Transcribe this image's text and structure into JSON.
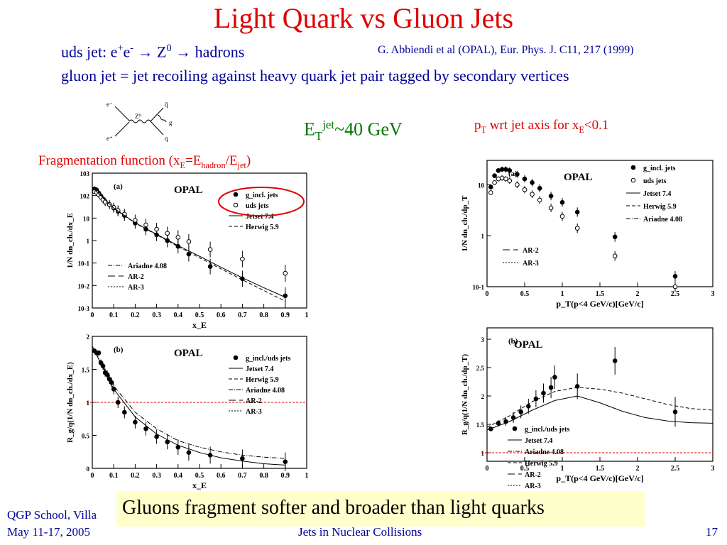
{
  "slide": {
    "title": "Light Quark vs Gluon Jets",
    "line1": {
      "prefix": "uds jet: e",
      "plus": "+",
      "e": "e",
      "minus": "-",
      "arrow1": " → Z",
      "zero": "0",
      "arrow2": " → hadrons"
    },
    "reference": "G. Abbiendi et al (OPAL), Eur. Phys. J. C11, 217 (1999)",
    "line2": "gluon jet = jet recoiling against heavy quark jet pair tagged by secondary vertices",
    "et": {
      "e": "E",
      "t": "T",
      "jet": "jet",
      "val": "~40 GeV"
    },
    "pt_label": {
      "p": "p",
      "t": "T",
      "mid": " wrt jet axis for x",
      "e": "E",
      "end": "<0.1"
    },
    "frag_label": {
      "a": "Fragmentation function (x",
      "e": "E",
      "b": "=E",
      "hadron": "hadron",
      "c": "/E",
      "jet": "jet",
      "d": ")"
    },
    "summary": "Gluons fragment softer and broader than light quarks",
    "footer": {
      "left1": "QGP School, Villa",
      "left2": "May 11-17, 2005",
      "center": "Jets in Nuclear Collisions",
      "page": "17"
    },
    "feynman": {
      "e_minus": "e⁻",
      "e_plus": "e⁺",
      "z": "Z⁰",
      "q": "q",
      "qbar": "q̄",
      "g": "g"
    }
  },
  "colors": {
    "title": "#e00000",
    "blue": "#000099",
    "green": "#007700",
    "banner": "#ffffcc",
    "circle": "#e00000",
    "ref_line": "#e00000"
  },
  "chart_data": [
    {
      "type": "scatter",
      "panel": "(a)",
      "title": "OPAL",
      "xlabel": "x_E",
      "ylabel": "1/N dn_ch./dx_E",
      "ylog": true,
      "xlim": [
        0,
        1
      ],
      "ylim": [
        0.001,
        1000
      ],
      "xticks": [
        "0",
        "0.1",
        "0.2",
        "0.3",
        "0.4",
        "0.5",
        "0.6",
        "0.7",
        "0.8",
        "0.9",
        "1"
      ],
      "yticks": [
        "10^3",
        "10^2",
        "10",
        "1",
        "10^-1",
        "10^-2",
        "10^-3"
      ],
      "legend_right": [
        "g_incl. jets",
        "uds jets",
        "Jetset 7.4",
        "Herwig 5.9"
      ],
      "legend_left": [
        "Ariadne 4.08",
        "AR-2",
        "AR-3"
      ],
      "series": [
        {
          "name": "g_incl. jets",
          "x": [
            0.01,
            0.02,
            0.03,
            0.04,
            0.05,
            0.06,
            0.08,
            0.1,
            0.12,
            0.15,
            0.2,
            0.25,
            0.3,
            0.35,
            0.4,
            0.45,
            0.55,
            0.7,
            0.9
          ],
          "values": [
            200,
            180,
            130,
            95,
            70,
            55,
            40,
            28,
            20,
            13,
            6,
            3.2,
            1.8,
            1.0,
            0.55,
            0.25,
            0.07,
            0.02,
            0.0035
          ]
        },
        {
          "name": "uds jets",
          "x": [
            0.01,
            0.02,
            0.03,
            0.04,
            0.05,
            0.06,
            0.08,
            0.1,
            0.12,
            0.15,
            0.2,
            0.25,
            0.3,
            0.35,
            0.4,
            0.45,
            0.55,
            0.7,
            0.9
          ],
          "values": [
            150,
            140,
            110,
            85,
            66,
            52,
            40,
            30,
            22,
            15,
            8,
            5,
            3.2,
            2.1,
            1.4,
            0.9,
            0.4,
            0.15,
            0.035
          ]
        },
        {
          "name": "Jetset 7.4",
          "x": [
            0.01,
            0.1,
            0.2,
            0.3,
            0.4,
            0.5,
            0.6,
            0.7,
            0.8,
            0.9
          ],
          "values": [
            190,
            28,
            6.2,
            1.9,
            0.6,
            0.2,
            0.065,
            0.022,
            0.008,
            0.003
          ]
        },
        {
          "name": "Herwig 5.9",
          "x": [
            0.01,
            0.1,
            0.2,
            0.3,
            0.4,
            0.5,
            0.6,
            0.7,
            0.8,
            0.9
          ],
          "values": [
            185,
            27,
            6.0,
            1.8,
            0.55,
            0.17,
            0.055,
            0.018,
            0.006,
            0.002
          ]
        }
      ]
    },
    {
      "type": "scatter",
      "panel": "(b)",
      "title": "OPAL",
      "xlabel": "x_E",
      "ylabel": "R_g/q(1/N dn_ch./dx_E)",
      "xlim": [
        0,
        1
      ],
      "ylim": [
        0,
        2
      ],
      "xticks": [
        "0",
        "0.1",
        "0.2",
        "0.3",
        "0.4",
        "0.5",
        "0.6",
        "0.7",
        "0.8",
        "0.9",
        "1"
      ],
      "yticks": [
        "0",
        "0.5",
        "1",
        "1.5",
        "2"
      ],
      "legend": [
        "g_incl./uds jets",
        "Jetset 7.4",
        "Herwig 5.9",
        "Ariadne 4.08",
        "AR-2",
        "AR-3"
      ],
      "series": [
        {
          "name": "g_incl./uds jets",
          "x": [
            0.01,
            0.02,
            0.03,
            0.04,
            0.05,
            0.06,
            0.07,
            0.08,
            0.09,
            0.1,
            0.12,
            0.15,
            0.2,
            0.25,
            0.3,
            0.35,
            0.4,
            0.45,
            0.55,
            0.7,
            0.9
          ],
          "values": [
            1.78,
            1.75,
            1.75,
            1.6,
            1.55,
            1.45,
            1.42,
            1.35,
            1.3,
            1.2,
            1.0,
            0.85,
            0.7,
            0.6,
            0.48,
            0.4,
            0.32,
            0.24,
            0.2,
            0.15,
            0.1
          ]
        },
        {
          "name": "Jetset 7.4",
          "x": [
            0.0,
            0.1,
            0.2,
            0.3,
            0.4,
            0.5,
            0.6,
            0.7,
            0.8,
            0.9
          ],
          "values": [
            1.85,
            1.2,
            0.78,
            0.52,
            0.35,
            0.24,
            0.16,
            0.11,
            0.07,
            0.05
          ]
        },
        {
          "name": "Ariadne 4.08",
          "x": [
            0.0,
            0.1,
            0.2,
            0.3,
            0.4,
            0.5,
            0.6,
            0.7,
            0.8,
            0.9
          ],
          "values": [
            1.85,
            1.25,
            0.85,
            0.6,
            0.42,
            0.32,
            0.25,
            0.2,
            0.17,
            0.15
          ]
        }
      ]
    },
    {
      "type": "scatter",
      "panel": "(a)",
      "title": "OPAL",
      "xlabel": "p_T(p<4 GeV/c)[GeV/c]",
      "ylabel": "1/N dn_ch./dp_T",
      "ylog": true,
      "xlim": [
        0,
        3
      ],
      "ylim": [
        0.1,
        30
      ],
      "xticks": [
        "0",
        "0.5",
        "1",
        "1.5",
        "2",
        "2.5",
        "3"
      ],
      "yticks": [
        "10",
        "1",
        "10^-1"
      ],
      "legend": [
        "g_incl. jets",
        "uds jets",
        "Jetset 7.4",
        "Herwig 5.9",
        "Ariadne 4.08"
      ],
      "legend_left": [
        "AR-2",
        "AR-3"
      ],
      "series": [
        {
          "name": "g_incl. jets",
          "x": [
            0.05,
            0.1,
            0.15,
            0.2,
            0.25,
            0.3,
            0.4,
            0.5,
            0.6,
            0.7,
            0.85,
            1.0,
            1.2,
            1.7,
            2.5
          ],
          "values": [
            9,
            15,
            19,
            20,
            20,
            19,
            16,
            13,
            11,
            8.5,
            6,
            4.5,
            2.9,
            0.95,
            0.16
          ]
        },
        {
          "name": "uds jets",
          "x": [
            0.05,
            0.1,
            0.15,
            0.2,
            0.25,
            0.3,
            0.4,
            0.5,
            0.6,
            0.7,
            0.85,
            1.0,
            1.2,
            1.7,
            2.5
          ],
          "values": [
            7,
            11,
            13,
            13.5,
            13,
            12,
            10,
            8,
            6.5,
            5,
            3.5,
            2.4,
            1.4,
            0.4,
            0.1
          ]
        }
      ]
    },
    {
      "type": "scatter",
      "panel": "(b)",
      "title": "OPAL",
      "xlabel": "p_T(p<4 GeV/c)[GeV/c]",
      "ylabel": "R_g/q(1/N dn_ch./dp_T)",
      "xlim": [
        0,
        3
      ],
      "ylim": [
        0.85,
        3.2
      ],
      "xticks": [
        "0",
        "0.5",
        "1",
        "1.5",
        "2",
        "2.5",
        "3"
      ],
      "yticks": [
        "1",
        "1.5",
        "2",
        "2.5",
        "3"
      ],
      "legend": [
        "g_incl./uds jets",
        "Jetset 7.4",
        "Ariadne 4.08",
        "Herwig 5.9",
        "AR-2",
        "AR-3"
      ],
      "series": [
        {
          "name": "g_incl./uds jets",
          "x": [
            0.05,
            0.15,
            0.25,
            0.35,
            0.45,
            0.55,
            0.65,
            0.75,
            0.85,
            0.9,
            1.2,
            1.7,
            2.5
          ],
          "values": [
            1.42,
            1.52,
            1.55,
            1.62,
            1.72,
            1.82,
            1.95,
            2.05,
            2.15,
            2.33,
            2.17,
            2.62,
            1.72
          ]
        },
        {
          "name": "Jetset 7.4",
          "x": [
            0.0,
            0.3,
            0.6,
            0.9,
            1.2,
            1.5,
            1.8,
            2.1,
            2.4,
            2.7,
            3.0
          ],
          "values": [
            1.4,
            1.55,
            1.75,
            1.92,
            2.0,
            1.88,
            1.73,
            1.62,
            1.56,
            1.53,
            1.52
          ]
        },
        {
          "name": "Herwig 5.9",
          "x": [
            0.0,
            0.3,
            0.6,
            0.9,
            1.2,
            1.5,
            1.8,
            2.1,
            2.4,
            2.7,
            3.0
          ],
          "values": [
            1.45,
            1.65,
            1.9,
            2.08,
            2.15,
            2.12,
            2.05,
            1.95,
            1.85,
            1.78,
            1.75
          ]
        }
      ]
    }
  ]
}
